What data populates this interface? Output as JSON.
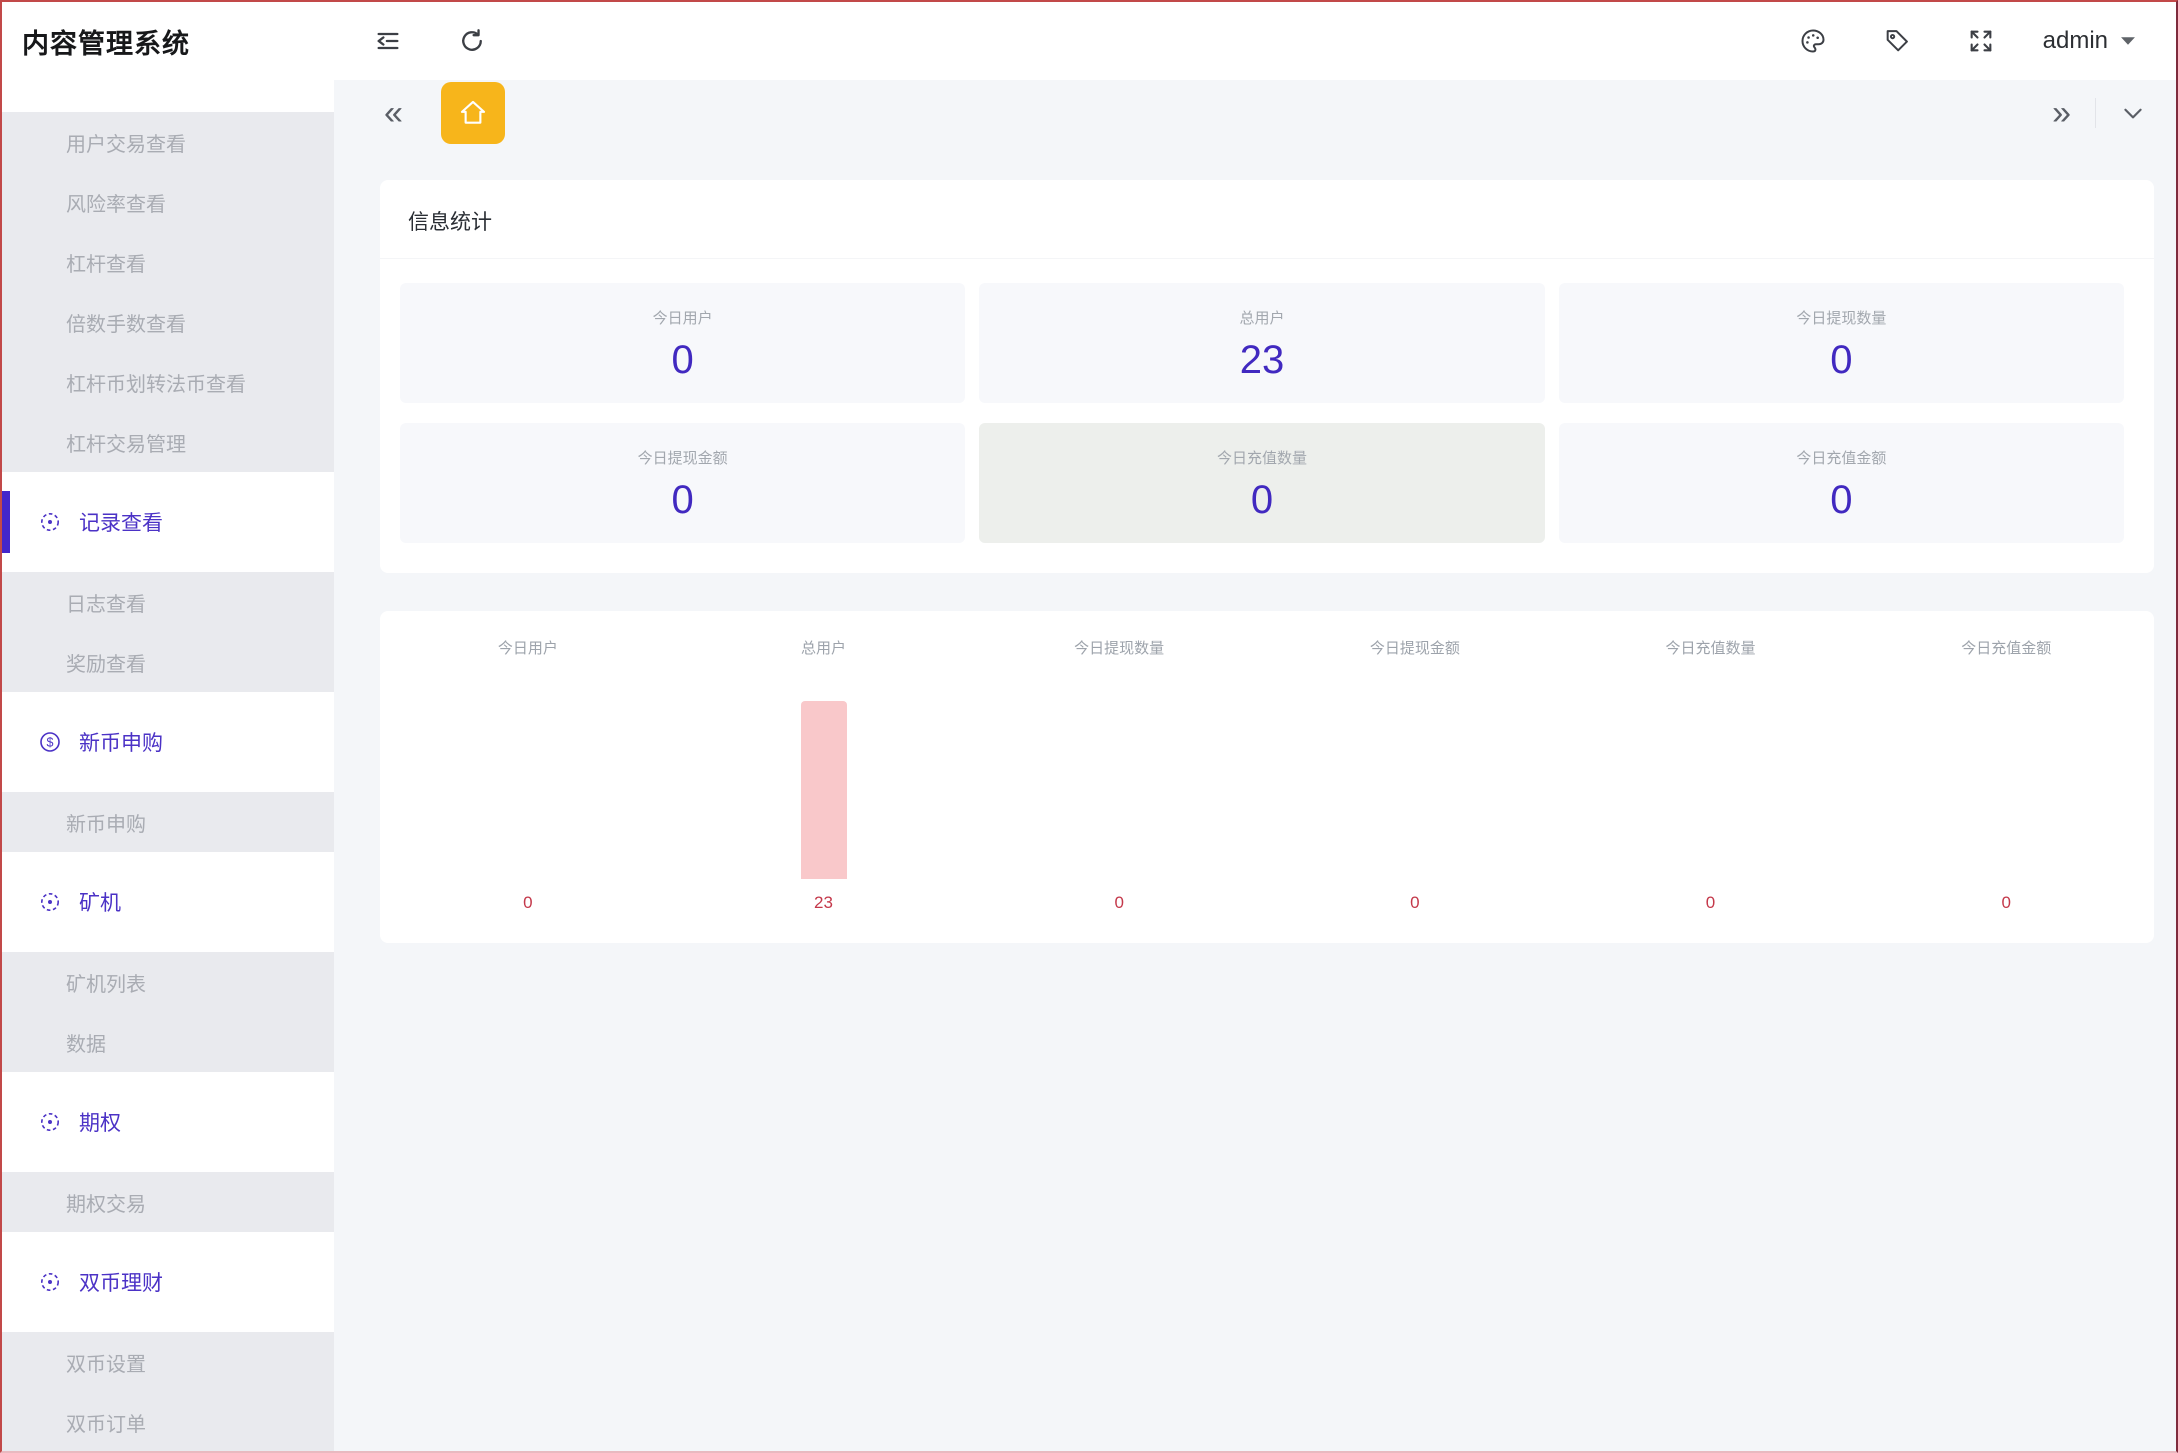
{
  "app": {
    "title": "内容管理系统"
  },
  "header": {
    "user_label": "admin",
    "icon_names": [
      "fold-icon",
      "refresh-icon",
      "palette-icon",
      "tag-icon",
      "fullscreen-icon",
      "caret-down-icon"
    ]
  },
  "tabbar": {
    "back_glyph": "«",
    "forward_glyph": "»",
    "home_tab_color": "#f7b51b",
    "home_icon": "home-icon",
    "chevron_icon": "chevron-down-icon"
  },
  "sidebar": {
    "active_color": "#4326cb",
    "items": [
      {
        "type": "sub",
        "label": "用户交易查看"
      },
      {
        "type": "sub",
        "label": "风险率查看"
      },
      {
        "type": "sub",
        "label": "杠杆查看"
      },
      {
        "type": "sub",
        "label": "倍数手数查看"
      },
      {
        "type": "sub",
        "label": "杠杆币划转法币查看"
      },
      {
        "type": "sub",
        "label": "杠杆交易管理"
      },
      {
        "type": "top",
        "label": "记录查看",
        "icon": "aim-icon",
        "active": true
      },
      {
        "type": "sub",
        "label": "日志查看"
      },
      {
        "type": "sub",
        "label": "奖励查看"
      },
      {
        "type": "top",
        "label": "新币申购",
        "icon": "dollar-icon"
      },
      {
        "type": "sub",
        "label": "新币申购"
      },
      {
        "type": "top",
        "label": "矿机",
        "icon": "aim-icon"
      },
      {
        "type": "sub",
        "label": "矿机列表"
      },
      {
        "type": "sub",
        "label": "数据"
      },
      {
        "type": "top",
        "label": "期权",
        "icon": "aim-icon"
      },
      {
        "type": "sub",
        "label": "期权交易"
      },
      {
        "type": "top",
        "label": "双币理财",
        "icon": "aim-icon"
      },
      {
        "type": "sub",
        "label": "双币设置"
      },
      {
        "type": "sub",
        "label": "双币订单"
      }
    ]
  },
  "stats": {
    "title": "信息统计",
    "value_color": "#4129c0",
    "tiles": [
      {
        "label": "今日用户",
        "value": "0"
      },
      {
        "label": "总用户",
        "value": "23"
      },
      {
        "label": "今日提现数量",
        "value": "0"
      },
      {
        "label": "今日提现金额",
        "value": "0"
      },
      {
        "label": "今日充值数量",
        "value": "0",
        "highlighted": true
      },
      {
        "label": "今日充值金额",
        "value": "0"
      }
    ]
  },
  "chart_data": {
    "type": "bar",
    "title": "",
    "categories": [
      "今日用户",
      "总用户",
      "今日提现数量",
      "今日提现金额",
      "今日充值数量",
      "今日充值金额"
    ],
    "values": [
      0,
      23,
      0,
      0,
      0,
      0
    ],
    "ylim": [
      0,
      23
    ],
    "grid": false,
    "legend": false,
    "bar_color": "#f9c8ca",
    "value_label_color": "#c4384a"
  }
}
